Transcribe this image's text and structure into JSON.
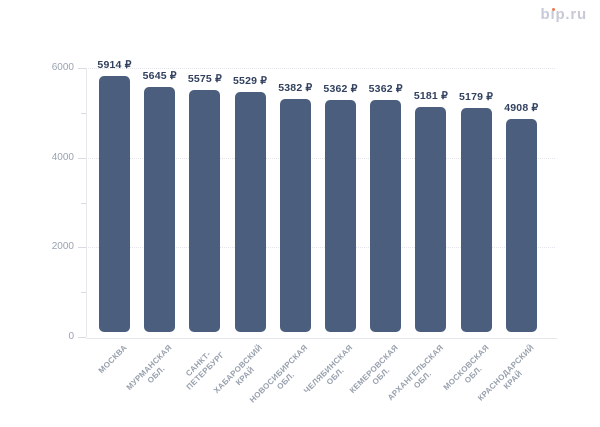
{
  "logo": {
    "text": "bip.ru",
    "color": "#c7c9d7",
    "dot_color": "#ee7950"
  },
  "chart_data": {
    "type": "bar",
    "title": "",
    "xlabel": "",
    "ylabel": "",
    "legend": "none",
    "grid": "horizontal-dotted",
    "categories": [
      "МОСКВА",
      "МУРМАНСКАЯ\nОБЛ.",
      "САНКТ-\nПЕТЕРБУРГ",
      "ХАБАРОВСКИЙ\nКРАЙ",
      "НОВОСИБИРСКАЯ\nОБЛ.",
      "ЧЕЛЯБИНСКАЯ\nОБЛ.",
      "КЕМЕРОВСКАЯ\nОБЛ.",
      "АРХАНГЕЛЬСКАЯ\nОБЛ.",
      "МОСКОВСКАЯ\nОБЛ.",
      "КРАСНОДАРСКИЙ\nКРАЙ"
    ],
    "values": [
      5914,
      5645,
      5575,
      5529,
      5382,
      5362,
      5362,
      5181,
      5179,
      4908
    ],
    "bar_labels": [
      "5914 ₽",
      "5645 ₽",
      "5575 ₽",
      "5529 ₽",
      "5382 ₽",
      "5362 ₽",
      "5362 ₽",
      "5181 ₽",
      "5179 ₽",
      "4908 ₽"
    ],
    "currency": "₽",
    "ylim": [
      0,
      6000
    ],
    "yticks": [
      0,
      2000,
      4000,
      6000
    ],
    "ytick_labels": [
      "0",
      "2000",
      "4000",
      "6000"
    ],
    "minor_yticks": [
      1000,
      3000,
      5000
    ],
    "colors": {
      "bar": "#4b5e7e",
      "value_label": "#32415f",
      "axis_tick_label": "#9aa2b1",
      "x_category_label": "#98a0ad",
      "gridline": "#e2e4e9",
      "axis_line": "#e6e8ec",
      "tick_mark": "#d9dbe1"
    }
  }
}
